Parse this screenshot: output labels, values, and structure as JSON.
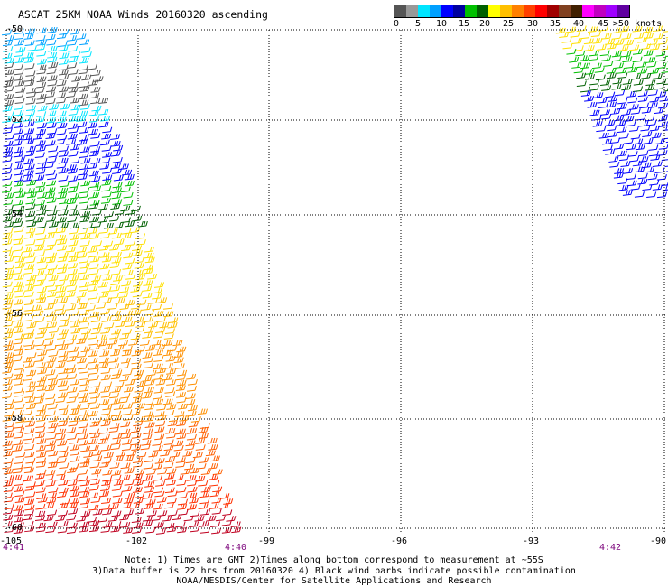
{
  "title": "ASCAT 25KM NOAA Winds 20160320 ascending",
  "color_scale": {
    "colors": [
      "#555555",
      "#999999",
      "#00e5ff",
      "#00a0ff",
      "#0000ff",
      "#0000a0",
      "#00c000",
      "#006000",
      "#ffff00",
      "#ffc000",
      "#ff8000",
      "#ff4000",
      "#ff0000",
      "#a00000",
      "#804020",
      "#402000",
      "#ff00ff",
      "#c000c0",
      "#a000ff",
      "#6000a0"
    ],
    "labels": [
      "0",
      "5",
      "10",
      "15",
      "20",
      "25",
      "30",
      "35",
      "40",
      "45",
      ">50 knots"
    ]
  },
  "lat_labels": [
    "-50",
    "-52",
    "-54",
    "-56",
    "-58",
    "-60"
  ],
  "lon_labels": [
    "-105",
    "-102",
    "-99",
    "-96",
    "-93",
    "-90"
  ],
  "times": [
    "4:41",
    "4:40",
    "4:42"
  ],
  "notes": [
    "Note: 1) Times are GMT 2)Times along bottom correspond to measurement at ~55S",
    "3)Data buffer is 22 hrs from 20160320 4) Black wind barbs indicate possible contamination",
    "NOAA/NESDIS/Center for Satellite Applications and Research"
  ]
}
